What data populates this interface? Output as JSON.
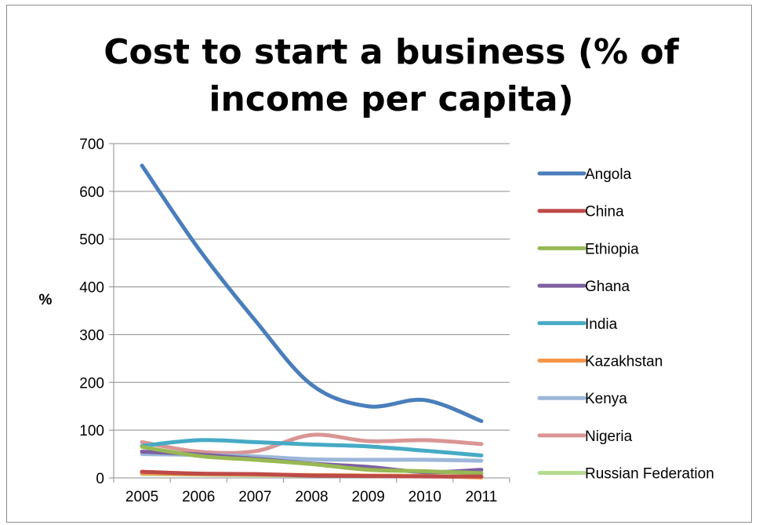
{
  "chart_data": {
    "type": "line",
    "title": "Cost to start a business (% of income per capita)",
    "xlabel": "",
    "ylabel": "%",
    "ylim": [
      0,
      700
    ],
    "yticks": [
      0,
      100,
      200,
      300,
      400,
      500,
      600,
      700
    ],
    "grid": true,
    "legend": "right",
    "x": [
      "2005",
      "2006",
      "2007",
      "2008",
      "2009",
      "2010",
      "2011"
    ],
    "series": [
      {
        "name": "Angola",
        "color": "#4a7ebb",
        "values": [
          654,
          480,
          330,
          195,
          150,
          163,
          119
        ]
      },
      {
        "name": "China",
        "color": "#be4b48",
        "values": [
          13,
          9,
          8,
          5,
          4,
          3,
          3
        ]
      },
      {
        "name": "Ethiopia",
        "color": "#98b954",
        "values": [
          65,
          46,
          38,
          29,
          17,
          14,
          10
        ]
      },
      {
        "name": "Ghana",
        "color": "#7d60a0",
        "values": [
          55,
          49,
          40,
          30,
          23,
          12,
          17
        ]
      },
      {
        "name": "India",
        "color": "#46aac5",
        "values": [
          67,
          79,
          75,
          70,
          66,
          57,
          47
        ]
      },
      {
        "name": "Kazakhstan",
        "color": "#f79646",
        "values": [
          10,
          8,
          7,
          6,
          5,
          4,
          1
        ]
      },
      {
        "name": "Kenya",
        "color": "#9bb7d9",
        "values": [
          50,
          48,
          45,
          39,
          38,
          38,
          36
        ]
      },
      {
        "name": "Nigeria",
        "color": "#d99694",
        "values": [
          75,
          55,
          56,
          90,
          77,
          79,
          71
        ]
      },
      {
        "name": "Russian Federation",
        "color": "#b6d98f",
        "values": [
          8,
          7,
          6,
          5,
          5,
          4,
          3
        ]
      }
    ]
  }
}
